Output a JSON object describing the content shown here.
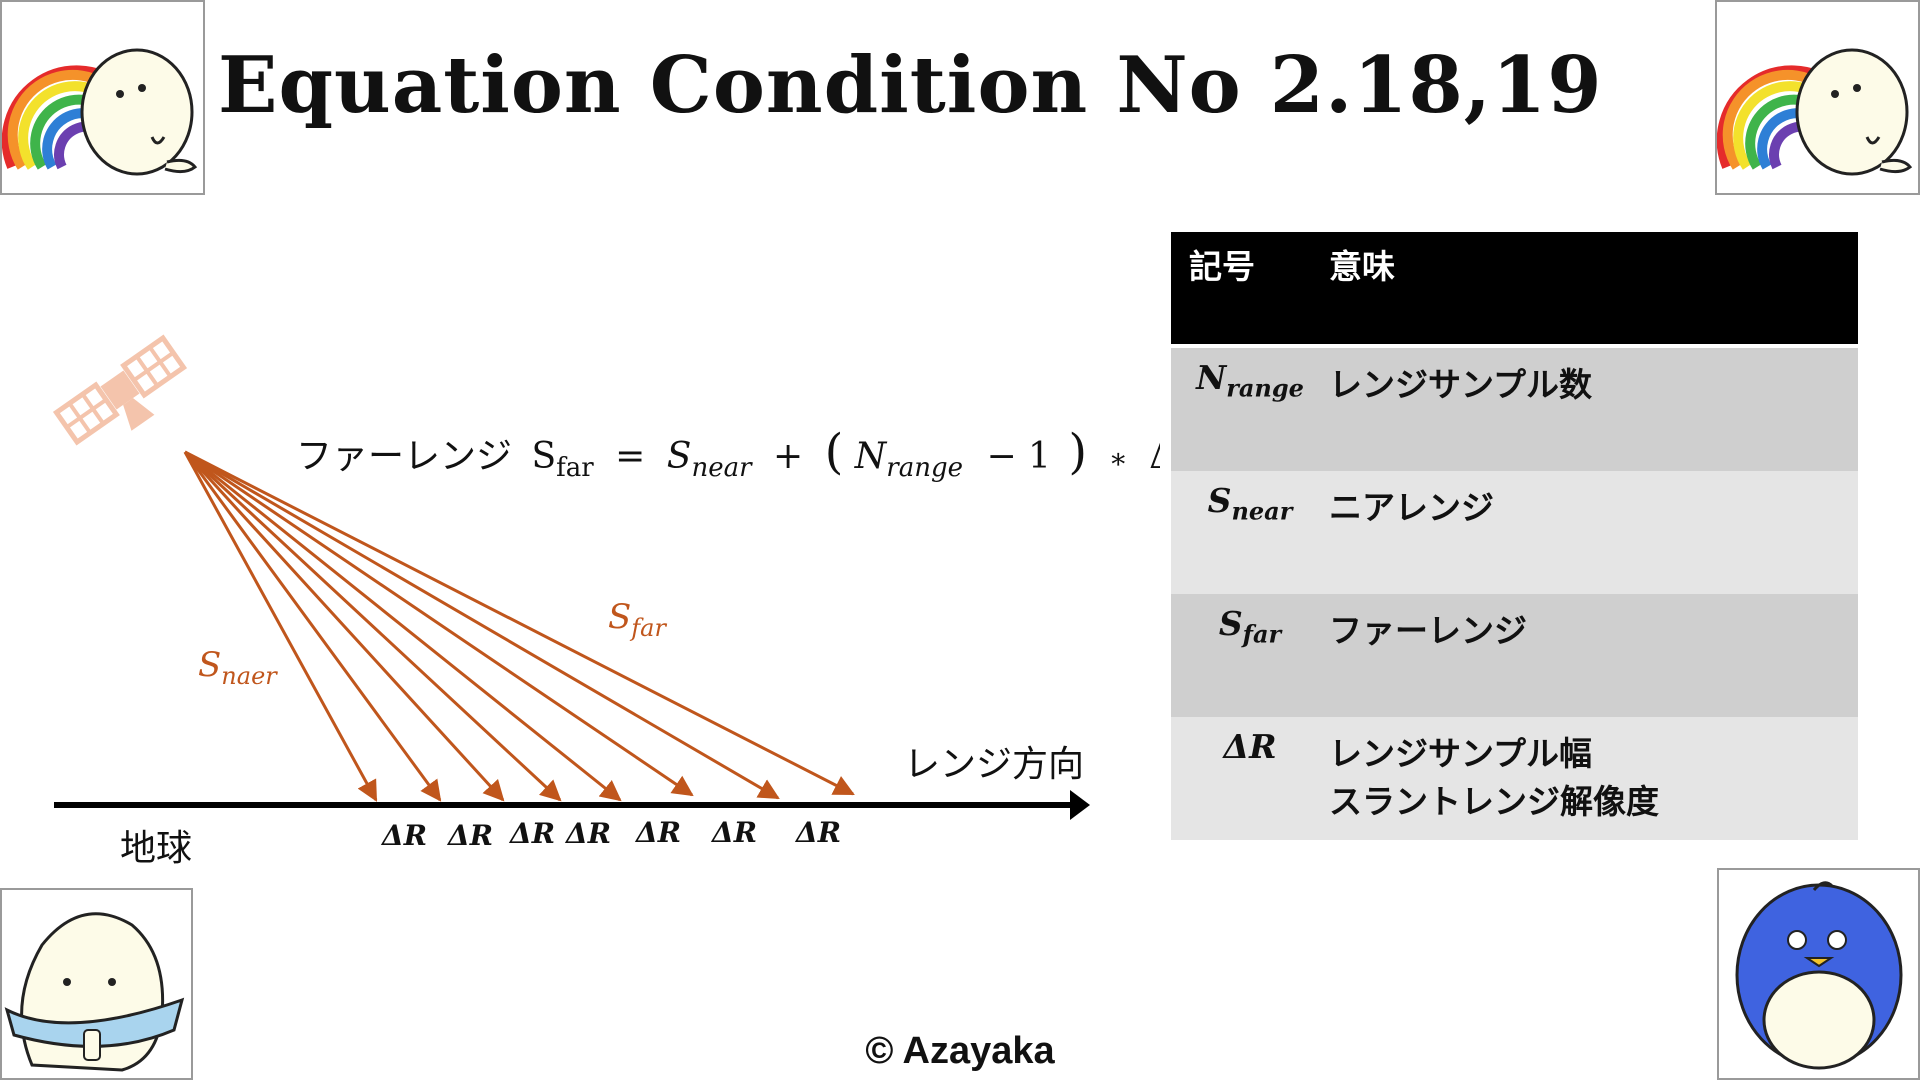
{
  "title": "Equation Condition No 2.18,19",
  "equation": {
    "label": "ファーレンジ",
    "lhs_sym": "S",
    "lhs_sub": "far",
    "equals": "=",
    "near_sym": "S",
    "near_sub": "near",
    "plus": "+",
    "open_paren": "(",
    "n_sym": "N",
    "n_sub": "range",
    "minus_one": "− 1",
    "close_paren": ")",
    "times": "∗",
    "delta": "ΔR"
  },
  "diagram": {
    "near_label_sym": "S",
    "near_label_sub": "naer",
    "far_label_sym": "S",
    "far_label_sub": "far",
    "axis_label": "レンジ方向",
    "ground_label": "地球",
    "delta_labels": [
      "ΔR",
      "ΔR",
      "ΔR",
      "ΔR",
      "ΔR",
      "ΔR",
      "ΔR"
    ],
    "beam_color": "#c0561c",
    "satellite_color": "#f4c4ac"
  },
  "table": {
    "header": {
      "symbol": "記号",
      "meaning": "意味"
    },
    "rows": [
      {
        "sym": "N",
        "sub": "range",
        "meaning1": "レンジサンプル数",
        "meaning2": ""
      },
      {
        "sym": "S",
        "sub": "near",
        "meaning1": "ニアレンジ",
        "meaning2": ""
      },
      {
        "sym": "S",
        "sub": "far",
        "meaning1": "ファーレンジ",
        "meaning2": ""
      },
      {
        "sym": "ΔR",
        "sub": "",
        "meaning1": "レンジサンプル幅",
        "meaning2": "スラントレンジ解像度"
      }
    ]
  },
  "copyright": "© Azayaka"
}
